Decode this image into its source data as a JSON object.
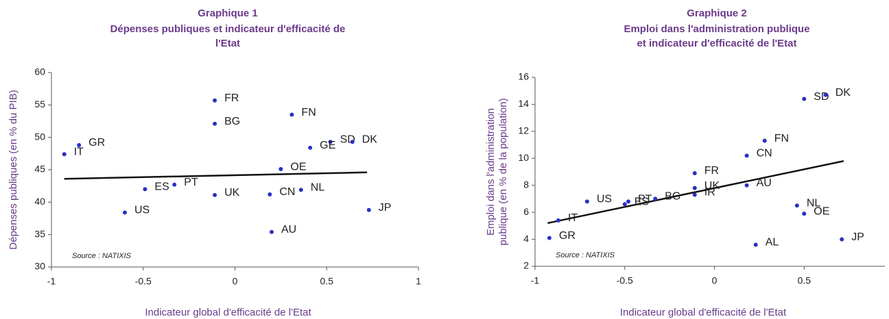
{
  "chart_data": [
    {
      "type": "scatter",
      "title": "Graphique 1",
      "subtitle": [
        "Dépenses publiques et indicateur d'efficacité de",
        "l'Etat"
      ],
      "xlabel": "Indicateur global d'efficacité de l'Etat",
      "ylabel": [
        "Dépenses publiques (en % du PIB)"
      ],
      "note": "Source  : NATIXIS",
      "color": "#2a2fc8",
      "labels": [
        "GR",
        "IT",
        "US",
        "ES",
        "PT",
        "UK",
        "BG",
        "FR",
        "FN",
        "SD",
        "DK",
        "OE",
        "GE",
        "CN",
        "NL",
        "AU",
        "JP"
      ],
      "x": [
        -0.85,
        -0.93,
        -0.6,
        -0.49,
        -0.33,
        -0.11,
        -0.11,
        -0.11,
        0.31,
        0.52,
        0.64,
        0.25,
        0.41,
        0.19,
        0.36,
        0.2,
        0.73
      ],
      "y": [
        48.8,
        47.4,
        38.4,
        42.0,
        42.7,
        41.1,
        52.1,
        55.7,
        53.5,
        49.3,
        49.3,
        45.1,
        48.4,
        41.2,
        41.9,
        35.4,
        38.8
      ],
      "trend": {
        "x": [
          -0.93,
          0.72
        ],
        "y": [
          43.6,
          44.6
        ]
      },
      "xlim": [
        -1,
        1
      ],
      "xticks": [
        -1,
        -0.5,
        0,
        0.5,
        1
      ],
      "ylim": [
        30,
        60
      ],
      "yticks": [
        30,
        35,
        40,
        45,
        50,
        55,
        60
      ]
    },
    {
      "type": "scatter",
      "title": "Graphique 2",
      "subtitle": [
        "Emploi dans l'administration publique",
        "et indicateur d'efficacité de l'Etat"
      ],
      "xlabel": "Indicateur global d'efficacité de l'Etat",
      "ylabel": [
        "Emploi  dans l'administration",
        "publique (en % de la population)"
      ],
      "note": "Source  : NATIXIS",
      "color": "#2a2fc8",
      "labels": [
        "IT",
        "GR",
        "US",
        "PT",
        "ES",
        "BG",
        "UK",
        "IR",
        "FR",
        "CN",
        "AU",
        "FN",
        "SD",
        "DK",
        "NL",
        "OE",
        "AL",
        "JP"
      ],
      "x": [
        -0.87,
        -0.92,
        -0.71,
        -0.48,
        -0.5,
        -0.33,
        -0.11,
        -0.11,
        -0.11,
        0.18,
        0.18,
        0.28,
        0.5,
        0.62,
        0.46,
        0.5,
        0.23,
        0.71
      ],
      "y": [
        5.4,
        4.1,
        6.8,
        6.8,
        6.6,
        7.0,
        7.8,
        7.3,
        8.9,
        10.2,
        8.0,
        11.3,
        14.4,
        14.7,
        6.5,
        5.9,
        3.6,
        4.0
      ],
      "trend": {
        "x": [
          -0.93,
          0.72
        ],
        "y": [
          5.2,
          9.8
        ]
      },
      "xlim": [
        -1,
        0.95
      ],
      "xticks": [
        -1,
        -0.5,
        0,
        0.5
      ],
      "ylim": [
        2,
        16
      ],
      "yticks": [
        2,
        4,
        6,
        8,
        10,
        12,
        14,
        16
      ]
    }
  ]
}
